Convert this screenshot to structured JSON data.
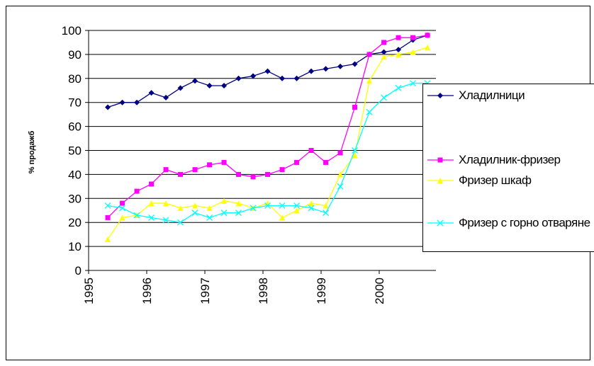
{
  "chart_data": {
    "type": "line",
    "y_label": "% продажб",
    "xlim": [
      1995,
      2001
    ],
    "xticks": [
      1995,
      1996,
      1997,
      1998,
      1999,
      2000
    ],
    "ylim": [
      0,
      100
    ],
    "yticks": [
      0,
      10,
      20,
      30,
      40,
      50,
      60,
      70,
      80,
      90,
      100
    ],
    "grid": true,
    "legend": "right",
    "x": [
      1995.33,
      1995.58,
      1995.83,
      1996.08,
      1996.33,
      1996.58,
      1996.83,
      1997.08,
      1997.33,
      1997.58,
      1997.83,
      1998.08,
      1998.33,
      1998.58,
      1998.83,
      1999.08,
      1999.33,
      1999.58,
      1999.83,
      2000.08,
      2000.33,
      2000.58,
      2000.83
    ],
    "series": [
      {
        "name": "Хладилници",
        "color": "#000080",
        "marker": "diamond",
        "values": [
          68,
          70,
          70,
          74,
          72,
          76,
          79,
          77,
          77,
          80,
          81,
          83,
          80,
          80,
          83,
          84,
          85,
          86,
          90,
          91,
          92,
          96,
          98
        ]
      },
      {
        "name": "Хладилник-фризер",
        "color": "#ff00ff",
        "marker": "square",
        "values": [
          22,
          28,
          33,
          36,
          42,
          40,
          42,
          44,
          45,
          40,
          39,
          40,
          42,
          45,
          50,
          45,
          49,
          68,
          90,
          95,
          97,
          97,
          98
        ]
      },
      {
        "name": "Фризер шкаф",
        "color": "#ffff00",
        "marker": "triangle",
        "values": [
          13,
          22,
          23,
          28,
          28,
          26,
          27,
          26,
          29,
          28,
          26,
          28,
          22,
          25,
          28,
          27,
          40,
          48,
          79,
          89,
          90,
          91,
          93
        ]
      },
      {
        "name": "Фризер с горно отваряне",
        "color": "#00ffff",
        "marker": "x",
        "values": [
          27,
          26,
          23,
          22,
          21,
          20,
          24,
          22,
          24,
          24,
          26,
          27,
          27,
          27,
          26,
          24,
          35,
          50,
          66,
          72,
          76,
          78,
          78
        ]
      }
    ]
  }
}
